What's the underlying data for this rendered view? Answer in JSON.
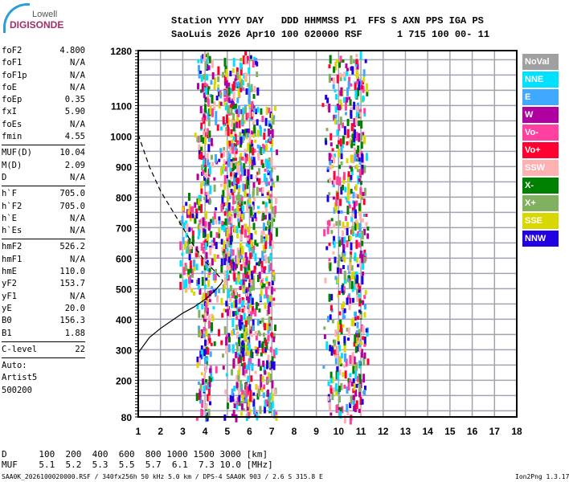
{
  "logo": {
    "line1": "Lowell",
    "line2": "DIGISONDE"
  },
  "header": {
    "labels": "Station YYYY DAY   DDD HHMMSS P1  FFS S AXN PPS IGA PS",
    "values": "SaoLuis 2026 Apr10 100 020000 RSF      1 715 100 00- 11"
  },
  "params": [
    [
      [
        "foF2",
        "4.800"
      ],
      [
        "foF1",
        "N/A"
      ],
      [
        "foF1p",
        "N/A"
      ],
      [
        "foE",
        "N/A"
      ],
      [
        "foEp",
        "0.35"
      ],
      [
        "fxI",
        "5.90"
      ],
      [
        "foEs",
        "N/A"
      ],
      [
        "fmin",
        "4.55"
      ]
    ],
    [
      [
        "MUF(D)",
        "10.04"
      ],
      [
        "M(D)",
        "2.09"
      ],
      [
        "D",
        "N/A"
      ]
    ],
    [
      [
        "h`F",
        "705.0"
      ],
      [
        "h`F2",
        "705.0"
      ],
      [
        "h`E",
        "N/A"
      ],
      [
        "h`Es",
        "N/A"
      ]
    ],
    [
      [
        "hmF2",
        "526.2"
      ],
      [
        "hmF1",
        "N/A"
      ],
      [
        "hmE",
        "110.0"
      ],
      [
        "yF2",
        "153.7"
      ],
      [
        "yF1",
        "N/A"
      ],
      [
        "yE",
        "20.0"
      ],
      [
        "B0",
        "156.3"
      ],
      [
        "B1",
        "1.88"
      ]
    ],
    [
      [
        "C-level",
        "22"
      ]
    ]
  ],
  "auto": [
    "Auto:",
    "Artist5",
    "500200"
  ],
  "legend": [
    {
      "label": "NoVal",
      "color": "#a0a0a0"
    },
    {
      "label": "NNE",
      "color": "#00e0ff"
    },
    {
      "label": "E",
      "color": "#40a8ff"
    },
    {
      "label": "W",
      "color": "#b000a0"
    },
    {
      "label": "Vo-",
      "color": "#ff40a0"
    },
    {
      "label": "Vo+",
      "color": "#ff0030"
    },
    {
      "label": "SSW",
      "color": "#ffb0b0"
    },
    {
      "label": "X-",
      "color": "#008000"
    },
    {
      "label": "X+",
      "color": "#80b060"
    },
    {
      "label": "SSE",
      "color": "#d8d800"
    },
    {
      "label": "NNW",
      "color": "#2000e0"
    }
  ],
  "muf_table": {
    "d_row": "D      100  200  400  600  800 1000 1500 3000 [km]",
    "muf_row": "MUF    5.1  5.2  5.3  5.5  5.7  6.1  7.3 10.0 [MHz]"
  },
  "footer": {
    "left": "SAA0K_2026100020000.RSF / 340fx256h 50 kHz 5.0 km / DPS-4 SAA0K 903 / 2.6 S 315.8 E",
    "right": "Ion2Png 1.3.17"
  },
  "chart_data": {
    "type": "scatter",
    "xlim": [
      1,
      18
    ],
    "ylim": [
      80,
      1280
    ],
    "xticks": [
      1,
      2,
      3,
      4,
      5,
      6,
      7,
      8,
      9,
      10,
      11,
      12,
      13,
      14,
      15,
      16,
      17,
      18
    ],
    "yticks": [
      80,
      200,
      300,
      400,
      500,
      600,
      700,
      800,
      900,
      1000,
      1100,
      1280
    ],
    "grid": true,
    "profile_solid": [
      [
        1,
        290
      ],
      [
        1.5,
        340
      ],
      [
        2,
        370
      ],
      [
        2.5,
        395
      ],
      [
        3,
        420
      ],
      [
        3.5,
        440
      ],
      [
        4,
        465
      ],
      [
        4.4,
        490
      ],
      [
        4.7,
        515
      ],
      [
        4.8,
        526
      ]
    ],
    "profile_dashed": [
      [
        1,
        1005
      ],
      [
        1.5,
        900
      ],
      [
        2,
        820
      ],
      [
        2.5,
        760
      ],
      [
        3,
        700
      ],
      [
        3.5,
        640
      ],
      [
        4,
        590
      ],
      [
        4.4,
        560
      ],
      [
        4.8,
        526
      ]
    ],
    "echo_traces": [
      {
        "f": [
          4.5,
          6.0
        ],
        "h": [
          300,
          1280
        ]
      },
      {
        "f": [
          4.8,
          5.4
        ],
        "h": [
          560,
          1200
        ]
      },
      {
        "f": [
          5.0,
          6.0
        ],
        "h": [
          80,
          620
        ]
      },
      {
        "f": [
          3.8,
          4.2
        ],
        "h": [
          80,
          1280
        ]
      },
      {
        "f": [
          5.5,
          6.2
        ],
        "h": [
          80,
          1280
        ]
      },
      {
        "f": [
          6.5,
          7.0
        ],
        "h": [
          80,
          1100
        ]
      },
      {
        "f": [
          9.5,
          10.5
        ],
        "h": [
          80,
          1280
        ]
      },
      {
        "f": [
          10.6,
          11.0
        ],
        "h": [
          100,
          1280
        ]
      },
      {
        "f": [
          3.0,
          3.5
        ],
        "h": [
          500,
          800
        ]
      }
    ]
  }
}
